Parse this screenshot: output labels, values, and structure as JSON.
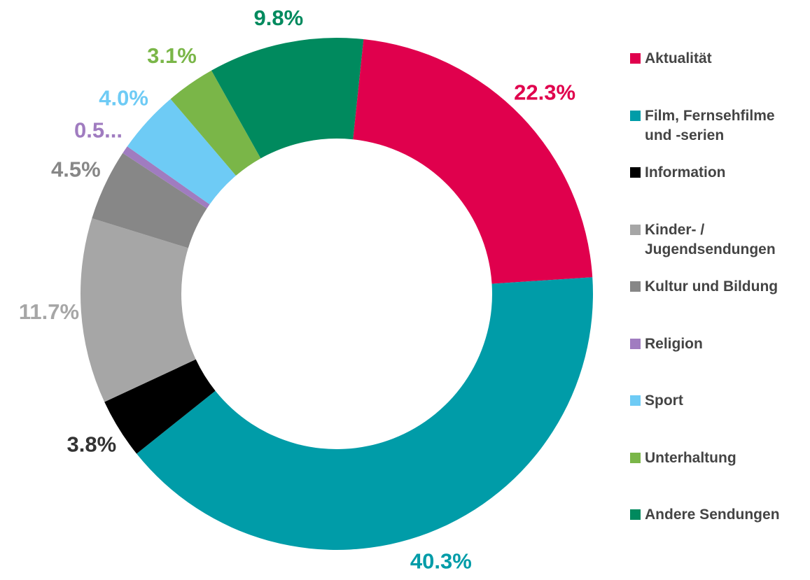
{
  "chart_data": {
    "type": "donut",
    "categories": [
      "Aktualität",
      "Film, Fernsehfilme und -serien",
      "Information",
      "Kinder- / Jugendsendungen",
      "Kultur und Bildung",
      "Religion",
      "Sport",
      "Unterhaltung",
      "Andere Sendungen"
    ],
    "values": [
      22.3,
      40.3,
      3.8,
      11.7,
      4.5,
      0.5,
      4.0,
      3.1,
      9.8
    ],
    "value_labels": [
      "22.3%",
      "40.3%",
      "3.8%",
      "11.7%",
      "4.5%",
      "0.5...",
      "4.0%",
      "3.1%",
      "9.8%"
    ],
    "colors": [
      "#e0004d",
      "#009ca8",
      "#000000",
      "#a6a6a6",
      "#878787",
      "#a07cc0",
      "#6ecbf5",
      "#7ab648",
      "#008a5e"
    ],
    "legend": "right"
  }
}
